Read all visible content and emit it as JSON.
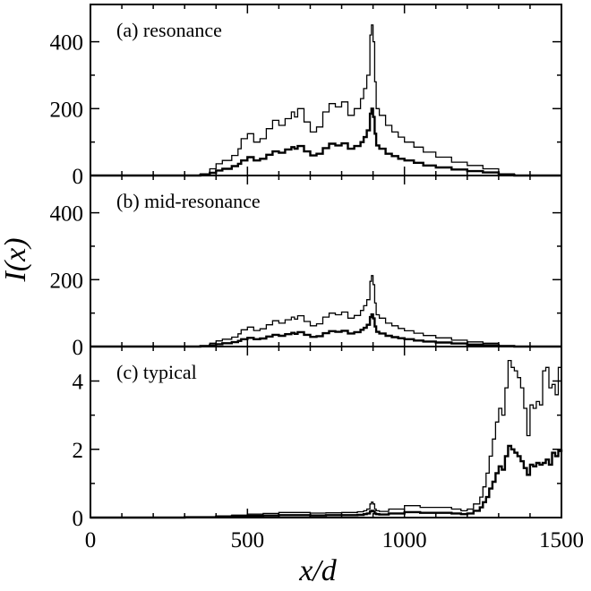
{
  "chart_data": {
    "type": "line",
    "xlabel": "x/d",
    "ylabel": "I(x)",
    "xlim": [
      0,
      1500
    ],
    "xticks": [
      0,
      500,
      1000,
      1500
    ],
    "xtick_labels": [
      "0",
      "500",
      "1000",
      "1500"
    ],
    "grid": false,
    "legend": "none",
    "panels": [
      {
        "label": "(a) resonance",
        "ylim": [
          0,
          490
        ],
        "yticks": [
          0,
          200,
          400
        ],
        "ytick_labels": [
          "0",
          "200",
          "400"
        ],
        "series": [
          {
            "x": [
              0,
              300,
              350,
              380,
              400,
              420,
              450,
              470,
              480,
              500,
              520,
              540,
              560,
              580,
              600,
              620,
              640,
              650,
              660,
              680,
              700,
              720,
              740,
              760,
              780,
              800,
              820,
              840,
              860,
              870,
              880,
              890,
              895,
              900,
              905,
              910,
              920,
              940,
              960,
              980,
              1000,
              1030,
              1060,
              1100,
              1150,
              1200,
              1250,
              1300,
              1350,
              1500
            ],
            "y": [
              0,
              0,
              5,
              20,
              35,
              45,
              60,
              80,
              110,
              125,
              100,
              110,
              140,
              165,
              150,
              170,
              190,
              175,
              200,
              160,
              130,
              145,
              190,
              215,
              205,
              220,
              180,
              200,
              230,
              260,
              300,
              420,
              450,
              400,
              280,
              200,
              180,
              150,
              130,
              115,
              100,
              85,
              70,
              55,
              40,
              30,
              20,
              5,
              0,
              0
            ]
          },
          {
            "x": [
              0,
              300,
              350,
              380,
              400,
              420,
              450,
              470,
              480,
              500,
              520,
              540,
              560,
              580,
              600,
              620,
              640,
              650,
              660,
              680,
              700,
              720,
              740,
              760,
              780,
              800,
              820,
              840,
              860,
              870,
              880,
              890,
              895,
              900,
              905,
              910,
              920,
              940,
              960,
              980,
              1000,
              1030,
              1060,
              1100,
              1150,
              1200,
              1250,
              1300,
              1350,
              1500
            ],
            "y": [
              0,
              0,
              2,
              8,
              15,
              20,
              28,
              35,
              45,
              55,
              45,
              50,
              62,
              72,
              68,
              78,
              85,
              80,
              88,
              72,
              60,
              65,
              82,
              95,
              90,
              96,
              80,
              88,
              100,
              115,
              135,
              185,
              200,
              175,
              125,
              90,
              80,
              65,
              58,
              50,
              45,
              38,
              30,
              24,
              18,
              13,
              9,
              2,
              0,
              0
            ]
          }
        ]
      },
      {
        "label": "(b) mid-resonance",
        "ylim": [
          0,
          490
        ],
        "yticks": [
          0,
          200,
          400
        ],
        "ytick_labels": [
          "0",
          "200",
          "400"
        ],
        "series": [
          {
            "x": [
              0,
              300,
              350,
              380,
              400,
              420,
              450,
              470,
              480,
              500,
              520,
              540,
              560,
              580,
              600,
              620,
              640,
              650,
              660,
              680,
              700,
              720,
              740,
              760,
              780,
              800,
              820,
              840,
              860,
              870,
              880,
              890,
              895,
              900,
              905,
              910,
              920,
              940,
              960,
              980,
              1000,
              1030,
              1060,
              1100,
              1150,
              1200,
              1250,
              1300,
              1350,
              1500
            ],
            "y": [
              0,
              0,
              3,
              10,
              17,
              22,
              28,
              38,
              50,
              58,
              48,
              53,
              65,
              77,
              70,
              80,
              88,
              82,
              92,
              75,
              62,
              68,
              88,
              100,
              95,
              103,
              85,
              93,
              108,
              122,
              140,
              195,
              212,
              185,
              130,
              95,
              85,
              70,
              62,
              54,
              47,
              40,
              33,
              26,
              19,
              14,
              10,
              3,
              0,
              0
            ]
          },
          {
            "x": [
              0,
              300,
              350,
              380,
              400,
              420,
              450,
              470,
              480,
              500,
              520,
              540,
              560,
              580,
              600,
              620,
              640,
              650,
              660,
              680,
              700,
              720,
              740,
              760,
              780,
              800,
              820,
              840,
              860,
              870,
              880,
              890,
              895,
              900,
              905,
              910,
              920,
              940,
              960,
              980,
              1000,
              1030,
              1060,
              1100,
              1150,
              1200,
              1250,
              1300,
              1350,
              1500
            ],
            "y": [
              0,
              0,
              1,
              4,
              7,
              10,
              13,
              17,
              22,
              26,
              22,
              24,
              30,
              35,
              32,
              37,
              41,
              38,
              43,
              35,
              29,
              31,
              40,
              46,
              44,
              47,
              39,
              43,
              50,
              56,
              65,
              88,
              96,
              84,
              60,
              44,
              39,
              32,
              28,
              25,
              22,
              18,
              15,
              12,
              9,
              6,
              4,
              1,
              0,
              0
            ]
          }
        ]
      },
      {
        "label": "(c) typical",
        "ylim": [
          0,
          4.8
        ],
        "yticks": [
          0,
          2,
          4
        ],
        "ytick_labels": [
          "0",
          "2",
          "4"
        ],
        "series": [
          {
            "x": [
              0,
              200,
              300,
              400,
              450,
              500,
              550,
              600,
              650,
              700,
              750,
              800,
              850,
              870,
              880,
              890,
              895,
              900,
              905,
              910,
              920,
              950,
              1000,
              1050,
              1100,
              1150,
              1180,
              1200,
              1220,
              1240,
              1250,
              1260,
              1270,
              1280,
              1290,
              1300,
              1310,
              1320,
              1330,
              1340,
              1350,
              1360,
              1370,
              1380,
              1390,
              1400,
              1410,
              1420,
              1430,
              1440,
              1450,
              1460,
              1470,
              1480,
              1490,
              1500
            ],
            "y": [
              0,
              0,
              0.02,
              0.05,
              0.07,
              0.1,
              0.12,
              0.15,
              0.15,
              0.13,
              0.14,
              0.15,
              0.17,
              0.2,
              0.25,
              0.4,
              0.45,
              0.4,
              0.25,
              0.2,
              0.18,
              0.25,
              0.35,
              0.3,
              0.3,
              0.25,
              0.2,
              0.25,
              0.4,
              0.6,
              0.9,
              1.3,
              1.8,
              2.3,
              2.8,
              3.2,
              3.0,
              3.8,
              4.6,
              4.4,
              4.3,
              4.1,
              3.8,
              3.2,
              2.4,
              3.3,
              3.2,
              3.4,
              3.3,
              4.3,
              4.4,
              3.8,
              3.9,
              3.6,
              4.4,
              4.5
            ]
          },
          {
            "x": [
              0,
              200,
              300,
              400,
              450,
              500,
              550,
              600,
              650,
              700,
              750,
              800,
              850,
              870,
              880,
              890,
              895,
              900,
              905,
              910,
              920,
              950,
              1000,
              1050,
              1100,
              1150,
              1180,
              1200,
              1220,
              1240,
              1250,
              1260,
              1270,
              1280,
              1290,
              1300,
              1310,
              1320,
              1330,
              1340,
              1350,
              1360,
              1370,
              1380,
              1390,
              1400,
              1410,
              1420,
              1430,
              1440,
              1450,
              1460,
              1470,
              1480,
              1490,
              1500
            ],
            "y": [
              0,
              0,
              0.01,
              0.03,
              0.04,
              0.05,
              0.06,
              0.07,
              0.07,
              0.06,
              0.07,
              0.07,
              0.08,
              0.1,
              0.12,
              0.18,
              0.2,
              0.18,
              0.12,
              0.1,
              0.09,
              0.12,
              0.16,
              0.14,
              0.14,
              0.12,
              0.1,
              0.12,
              0.2,
              0.3,
              0.45,
              0.6,
              0.85,
              1.05,
              1.3,
              1.5,
              1.4,
              1.8,
              2.1,
              2.0,
              1.9,
              1.8,
              1.65,
              1.45,
              1.25,
              1.55,
              1.5,
              1.6,
              1.55,
              1.6,
              1.7,
              1.55,
              1.9,
              1.8,
              1.95,
              2.0
            ]
          }
        ]
      }
    ]
  }
}
